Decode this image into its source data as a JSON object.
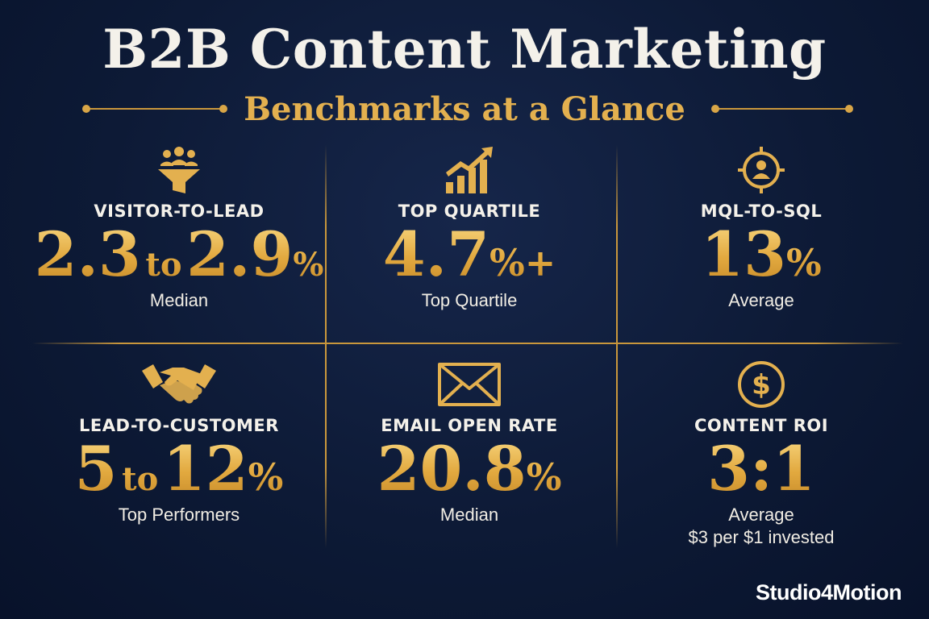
{
  "header": {
    "title": "B2B Content Marketing",
    "subtitle": "Benchmarks at a Glance"
  },
  "colors": {
    "background": "#0d1a36",
    "gold": "#e3b04f",
    "text": "#f4f1ea"
  },
  "metrics": [
    {
      "icon": "funnel-people-icon",
      "label": "VISITOR-TO-LEAD",
      "value_a": "2.3",
      "joiner": "to",
      "value_b": "2.9",
      "unit": "%",
      "suffix": "",
      "note": "Median",
      "note2": ""
    },
    {
      "icon": "growth-chart-icon",
      "label": "TOP QUARTILE",
      "value_a": "4.7",
      "joiner": "",
      "value_b": "",
      "unit": "%",
      "suffix": "+",
      "note": "Top Quartile",
      "note2": ""
    },
    {
      "icon": "target-person-icon",
      "label": "MQL-TO-SQL",
      "value_a": "13",
      "joiner": "",
      "value_b": "",
      "unit": "%",
      "suffix": "",
      "note": "Average",
      "note2": ""
    },
    {
      "icon": "handshake-icon",
      "label": "LEAD-TO-CUSTOMER",
      "value_a": "5",
      "joiner": "to",
      "value_b": "12",
      "unit": "%",
      "suffix": "",
      "note": "Top Performers",
      "note2": ""
    },
    {
      "icon": "envelope-icon",
      "label": "EMAIL OPEN RATE",
      "value_a": "20.8",
      "joiner": "",
      "value_b": "",
      "unit": "%",
      "suffix": "",
      "note": "Median",
      "note2": ""
    },
    {
      "icon": "dollar-coin-icon",
      "label": "CONTENT ROI",
      "value_a": "3:1",
      "joiner": "",
      "value_b": "",
      "unit": "",
      "suffix": "",
      "note": "Average",
      "note2": "$3 per $1 invested"
    }
  ],
  "brand": "Studio4Motion"
}
